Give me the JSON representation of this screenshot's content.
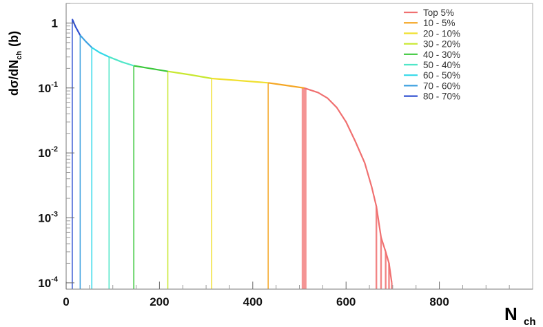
{
  "chart_data": {
    "type": "line",
    "panel_label": "(b)",
    "xlabel_main": "N",
    "xlabel_sub": "ch",
    "ylabel": "dσ/dN",
    "ylabel_sub": "ch",
    "xlim": [
      0,
      1000
    ],
    "ylim": [
      8e-05,
      2
    ],
    "yscale": "log",
    "x_ticks": [
      0,
      200,
      400,
      600,
      800
    ],
    "x_tick_labels": [
      "0",
      "200",
      "400",
      "600",
      "800"
    ],
    "y_ticks": [
      1,
      0.1,
      0.01,
      0.001,
      0.0001
    ],
    "y_tick_labels": [
      {
        "base": "1",
        "exp": ""
      },
      {
        "base": "10",
        "exp": "-1"
      },
      {
        "base": "10",
        "exp": "-2"
      },
      {
        "base": "10",
        "exp": "-3"
      },
      {
        "base": "10",
        "exp": "-4"
      }
    ],
    "grid": false,
    "legend_position": "top-right",
    "series": [
      {
        "name": "Top 5%",
        "color": "#f07070",
        "edge": 510,
        "x": [
          510,
          540,
          560,
          580,
          600,
          620,
          640,
          655,
          665,
          675,
          685,
          692,
          698
        ],
        "y": [
          0.1,
          0.085,
          0.07,
          0.05,
          0.03,
          0.015,
          0.007,
          0.003,
          0.0015,
          0.0005,
          0.0003,
          0.0002,
          0.0001
        ]
      },
      {
        "name": "10 - 5%",
        "color": "#f5a623",
        "edge": 433,
        "x": [
          433,
          470,
          510
        ],
        "y": [
          0.12,
          0.11,
          0.1
        ]
      },
      {
        "name": "20 - 10%",
        "color": "#f0e030",
        "edge": 312,
        "x": [
          312,
          370,
          433
        ],
        "y": [
          0.14,
          0.13,
          0.12
        ]
      },
      {
        "name": "30 - 20%",
        "color": "#c8e830",
        "edge": 218,
        "x": [
          218,
          265,
          312
        ],
        "y": [
          0.18,
          0.16,
          0.14
        ]
      },
      {
        "name": "40 - 30%",
        "color": "#3cc83c",
        "edge": 145,
        "x": [
          145,
          180,
          218
        ],
        "y": [
          0.22,
          0.2,
          0.18
        ]
      },
      {
        "name": "50 - 40%",
        "color": "#50e6c8",
        "edge": 92,
        "x": [
          92,
          120,
          145
        ],
        "y": [
          0.3,
          0.25,
          0.22
        ]
      },
      {
        "name": "60 - 50%",
        "color": "#30d8e8",
        "edge": 55,
        "x": [
          55,
          72,
          92
        ],
        "y": [
          0.42,
          0.35,
          0.3
        ]
      },
      {
        "name": "70 - 60%",
        "color": "#3ca0e0",
        "edge": 30,
        "x": [
          30,
          42,
          55
        ],
        "y": [
          0.65,
          0.52,
          0.42
        ]
      },
      {
        "name": "80 - 70%",
        "color": "#3050d0",
        "edge": 13,
        "x": [
          13,
          20,
          30
        ],
        "y": [
          1.15,
          0.88,
          0.65
        ]
      }
    ]
  }
}
